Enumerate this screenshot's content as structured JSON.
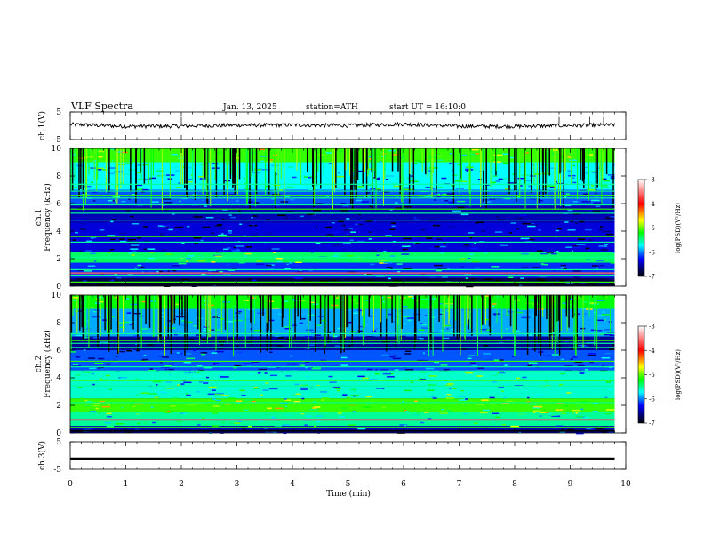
{
  "header": {
    "title": "VLF Spectra",
    "date": "Jan. 13, 2025",
    "station": "station=ATH",
    "start": "start UT =  16:10:0"
  },
  "panels": {
    "ch1_wave": {
      "ylabel": "ch.1(V)",
      "ticks": [
        "5",
        "-5"
      ]
    },
    "ch1_spec": {
      "ylabel": "ch.1\nFrequency (kHz)",
      "ticks": [
        "10",
        "8",
        "6",
        "4",
        "2",
        "0"
      ]
    },
    "ch2_spec": {
      "ylabel": "ch.2\nFrequency (kHz)",
      "ticks": [
        "10",
        "8",
        "6",
        "4",
        "2",
        "0"
      ]
    },
    "ch3_wave": {
      "ylabel": "ch.3(V)",
      "ticks": [
        "5",
        "-5"
      ]
    }
  },
  "xaxis": {
    "label": "Time (min)",
    "ticks": [
      "0",
      "1",
      "2",
      "3",
      "4",
      "5",
      "6",
      "7",
      "8",
      "9",
      "10"
    ]
  },
  "colorbar": {
    "label": "log(PSD)(V²/Hz)",
    "ticks": [
      "-3",
      "-4",
      "-5",
      "-6",
      "-7"
    ],
    "colors": [
      "#ffffff",
      "#ff0000",
      "#ffff00",
      "#00ff00",
      "#00ffff",
      "#0000ff",
      "#000000"
    ]
  },
  "chart_data": [
    {
      "type": "line",
      "title": "ch.1(V)",
      "xlabel": "Time (min)",
      "ylabel": "ch.1(V)",
      "xlim": [
        0,
        10
      ],
      "ylim": [
        -5,
        5
      ],
      "series": [
        {
          "x": [
            0,
            1,
            2,
            3,
            4,
            5,
            6,
            7,
            8,
            9,
            9.8
          ],
          "values": [
            0.5,
            -0.2,
            -0.1,
            0.2,
            0.3,
            0.1,
            0.6,
            -0.2,
            -0.2,
            0.1,
            0.3
          ]
        }
      ]
    },
    {
      "type": "heatmap",
      "title": "ch.1",
      "xlabel": "Time (min)",
      "ylabel": "Frequency (kHz)",
      "xlim": [
        0,
        10
      ],
      "ylim": [
        0,
        10
      ],
      "zlim": [
        -7,
        -3
      ],
      "bands": [
        {
          "f": [
            9.0,
            10.0
          ],
          "psd": -5.1
        },
        {
          "f": [
            7.0,
            9.0
          ],
          "psd": -5.7
        },
        {
          "f": [
            6.0,
            7.0
          ],
          "psd": -6.1
        },
        {
          "f": [
            4.6,
            6.0
          ],
          "psd": -6.5
        },
        {
          "f": [
            2.5,
            4.6
          ],
          "psd": -6.4
        },
        {
          "f": [
            1.7,
            2.5
          ],
          "psd": -5.4
        },
        {
          "f": [
            0.6,
            1.7
          ],
          "psd": -6.2
        },
        {
          "f": [
            0.0,
            0.6
          ],
          "psd": -6.8
        }
      ],
      "lines_khz": [
        0.3,
        0.8,
        1.2,
        1.9,
        2.1,
        3.2,
        3.6,
        4.8,
        5.3,
        5.6,
        5.9,
        6.4,
        6.6,
        6.9,
        7.4
      ]
    },
    {
      "type": "heatmap",
      "title": "ch.2",
      "xlabel": "Time (min)",
      "ylabel": "Frequency (kHz)",
      "xlim": [
        0,
        10
      ],
      "ylim": [
        0,
        10
      ],
      "zlim": [
        -7,
        -3
      ],
      "bands": [
        {
          "f": [
            9.0,
            10.0
          ],
          "psd": -5.2
        },
        {
          "f": [
            7.0,
            9.0
          ],
          "psd": -5.9
        },
        {
          "f": [
            6.0,
            7.0
          ],
          "psd": -6.6
        },
        {
          "f": [
            4.5,
            6.0
          ],
          "psd": -6.1
        },
        {
          "f": [
            2.5,
            4.5
          ],
          "psd": -5.6
        },
        {
          "f": [
            1.5,
            2.5
          ],
          "psd": -5.1
        },
        {
          "f": [
            0.5,
            1.5
          ],
          "psd": -5.5
        },
        {
          "f": [
            0.0,
            0.5
          ],
          "psd": -6.5
        }
      ],
      "lines_khz": [
        0.4,
        0.9,
        1.3,
        2.0,
        2.2,
        3.4,
        3.8,
        4.5,
        4.8,
        5.2,
        6.2,
        6.5,
        6.7,
        7.2
      ]
    },
    {
      "type": "line",
      "title": "ch.3(V)",
      "xlabel": "Time (min)",
      "ylabel": "ch.3(V)",
      "xlim": [
        0,
        10
      ],
      "ylim": [
        -5,
        5
      ],
      "series": [
        {
          "x": [
            0,
            5,
            9.8
          ],
          "values": [
            -1.2,
            -1.2,
            -1.2
          ]
        }
      ]
    }
  ]
}
